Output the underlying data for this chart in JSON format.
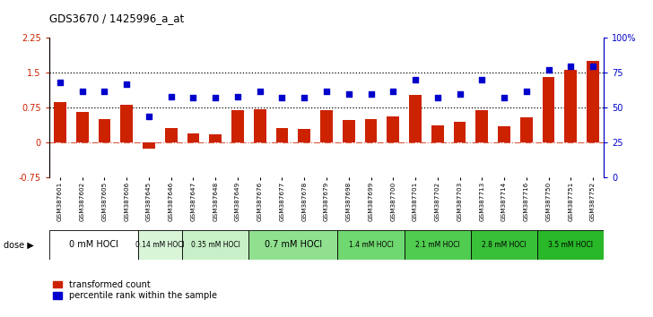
{
  "title": "GDS3670 / 1425996_a_at",
  "samples": [
    "GSM387601",
    "GSM387602",
    "GSM387605",
    "GSM387606",
    "GSM387645",
    "GSM387646",
    "GSM387647",
    "GSM387648",
    "GSM387649",
    "GSM387676",
    "GSM387677",
    "GSM387678",
    "GSM387679",
    "GSM387698",
    "GSM387699",
    "GSM387700",
    "GSM387701",
    "GSM387702",
    "GSM387703",
    "GSM387713",
    "GSM387714",
    "GSM387716",
    "GSM387750",
    "GSM387751",
    "GSM387752"
  ],
  "bar_values": [
    0.88,
    0.67,
    0.5,
    0.82,
    -0.12,
    0.31,
    0.19,
    0.18,
    0.69,
    0.72,
    0.31,
    0.3,
    0.69,
    0.48,
    0.5,
    0.57,
    1.03,
    0.37,
    0.45,
    0.7,
    0.35,
    0.55,
    1.42,
    1.57,
    1.75
  ],
  "percentile_values": [
    68,
    62,
    62,
    67,
    44,
    58,
    57,
    57,
    58,
    62,
    57,
    57,
    62,
    60,
    60,
    62,
    70,
    57,
    60,
    70,
    57,
    62,
    77,
    80,
    80
  ],
  "dose_groups": [
    {
      "label": "0 mM HOCl",
      "start": 0,
      "end": 4,
      "color": "#ffffff"
    },
    {
      "label": "0.14 mM HOCl",
      "start": 4,
      "end": 6,
      "color": "#d8f5d8"
    },
    {
      "label": "0.35 mM HOCl",
      "start": 6,
      "end": 9,
      "color": "#c8f0c8"
    },
    {
      "label": "0.7 mM HOCl",
      "start": 9,
      "end": 13,
      "color": "#90e090"
    },
    {
      "label": "1.4 mM HOCl",
      "start": 13,
      "end": 16,
      "color": "#70d870"
    },
    {
      "label": "2.1 mM HOCl",
      "start": 16,
      "end": 19,
      "color": "#50cc50"
    },
    {
      "label": "2.8 mM HOCl",
      "start": 19,
      "end": 22,
      "color": "#38c038"
    },
    {
      "label": "3.5 mM HOCl",
      "start": 22,
      "end": 25,
      "color": "#28b828"
    }
  ],
  "ylim_left": [
    -0.75,
    2.25
  ],
  "ylim_right": [
    0,
    100
  ],
  "yticks_left": [
    -0.75,
    0,
    0.75,
    1.5,
    2.25
  ],
  "ytick_labels_left": [
    "-0.75",
    "0",
    "0.75",
    "1.5",
    "2.25"
  ],
  "yticks_right": [
    0,
    25,
    50,
    75,
    100
  ],
  "ytick_labels_right": [
    "0",
    "25",
    "50",
    "75",
    "100%"
  ],
  "hline_dotted": [
    0.75,
    1.5
  ],
  "hline_zero": 0,
  "bar_color": "#cc2200",
  "percentile_color": "#0000cc",
  "background_color": "#ffffff"
}
